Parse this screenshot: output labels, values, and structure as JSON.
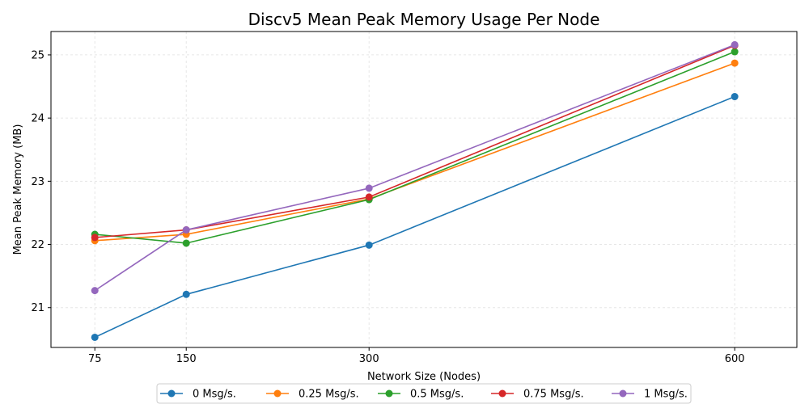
{
  "chart_data": {
    "type": "line",
    "title": "Discv5 Mean Peak Memory Usage Per Node",
    "xlabel": "Network Size (Nodes)",
    "ylabel": "Mean Peak Memory (MB)",
    "x": [
      75,
      150,
      300,
      600
    ],
    "x_tick_labels": [
      "75",
      "150",
      "300",
      "600"
    ],
    "xlim": [
      39,
      651
    ],
    "ylim": [
      20.37,
      25.37
    ],
    "y_ticks": [
      21,
      22,
      23,
      24,
      25
    ],
    "y_tick_labels": [
      "21",
      "22",
      "23",
      "24",
      "25"
    ],
    "grid": true,
    "legend_position": "bottom-center",
    "markers": "circle",
    "series": [
      {
        "name": "0 Msg/s.",
        "color": "#1f77b4",
        "values": [
          20.53,
          21.21,
          21.99,
          24.34
        ]
      },
      {
        "name": "0.25 Msg/s.",
        "color": "#ff7f0e",
        "values": [
          22.06,
          22.16,
          22.72,
          24.87
        ]
      },
      {
        "name": "0.5 Msg/s.",
        "color": "#2ca02c",
        "values": [
          22.16,
          22.02,
          22.71,
          25.05
        ]
      },
      {
        "name": "0.75 Msg/s.",
        "color": "#d62728",
        "values": [
          22.11,
          22.23,
          22.75,
          25.15
        ]
      },
      {
        "name": "1 Msg/s.",
        "color": "#9467bd",
        "values": [
          21.27,
          22.23,
          22.89,
          25.16
        ]
      }
    ]
  }
}
